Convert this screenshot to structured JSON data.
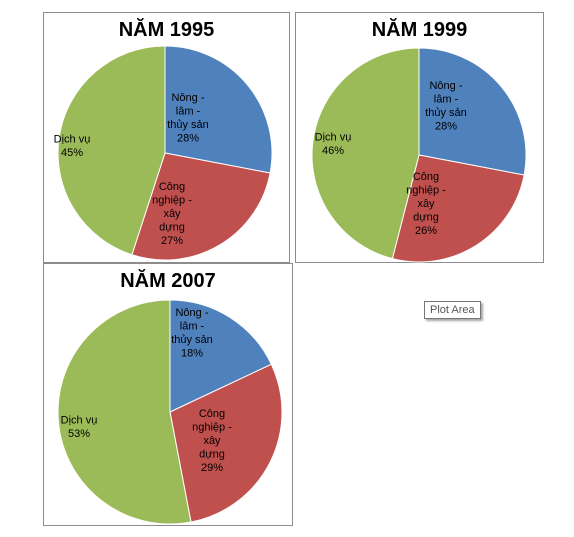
{
  "chart_data": [
    {
      "type": "pie",
      "title": "NĂM 1995",
      "slices": [
        {
          "label": "Nông - lâm - thủy sản",
          "lines": [
            "Nông -",
            "lâm -",
            "thủy sản"
          ],
          "value": 28,
          "pct_label": "28%",
          "color": "#4f81bd"
        },
        {
          "label": "Công nghiệp - xây dựng",
          "lines": [
            "Công",
            "nghiệp -",
            "xây",
            "dựng"
          ],
          "value": 27,
          "pct_label": "27%",
          "color": "#c0504d"
        },
        {
          "label": "Dịch vụ",
          "lines": [
            "Dịch vụ"
          ],
          "value": 45,
          "pct_label": "45%",
          "color": "#9bbb59"
        }
      ]
    },
    {
      "type": "pie",
      "title": "NĂM 1999",
      "slices": [
        {
          "label": "Nông - lâm - thủy sản",
          "lines": [
            "Nông -",
            "lâm -",
            "thủy sản"
          ],
          "value": 28,
          "pct_label": "28%",
          "color": "#4f81bd"
        },
        {
          "label": "Công nghiệp - xây dựng",
          "lines": [
            "Công",
            "nghiệp -",
            "xây",
            "dựng"
          ],
          "value": 26,
          "pct_label": "26%",
          "color": "#c0504d"
        },
        {
          "label": "Dịch vụ",
          "lines": [
            "Dịch vụ"
          ],
          "value": 46,
          "pct_label": "46%",
          "color": "#9bbb59"
        }
      ]
    },
    {
      "type": "pie",
      "title": "NĂM 2007",
      "slices": [
        {
          "label": "Nông - lâm - thủy sản",
          "lines": [
            "Nông -",
            "lâm -",
            "thủy sản"
          ],
          "value": 18,
          "pct_label": "18%",
          "color": "#4f81bd"
        },
        {
          "label": "Công nghiệp - xây dựng",
          "lines": [
            "Công",
            "nghiệp -",
            "xây",
            "dựng"
          ],
          "value": 29,
          "pct_label": "29%",
          "color": "#c0504d"
        },
        {
          "label": "Dịch vụ",
          "lines": [
            "Dịch vụ"
          ],
          "value": 53,
          "pct_label": "53%",
          "color": "#9bbb59"
        }
      ]
    }
  ],
  "tooltip": {
    "text": "Plot Area"
  }
}
